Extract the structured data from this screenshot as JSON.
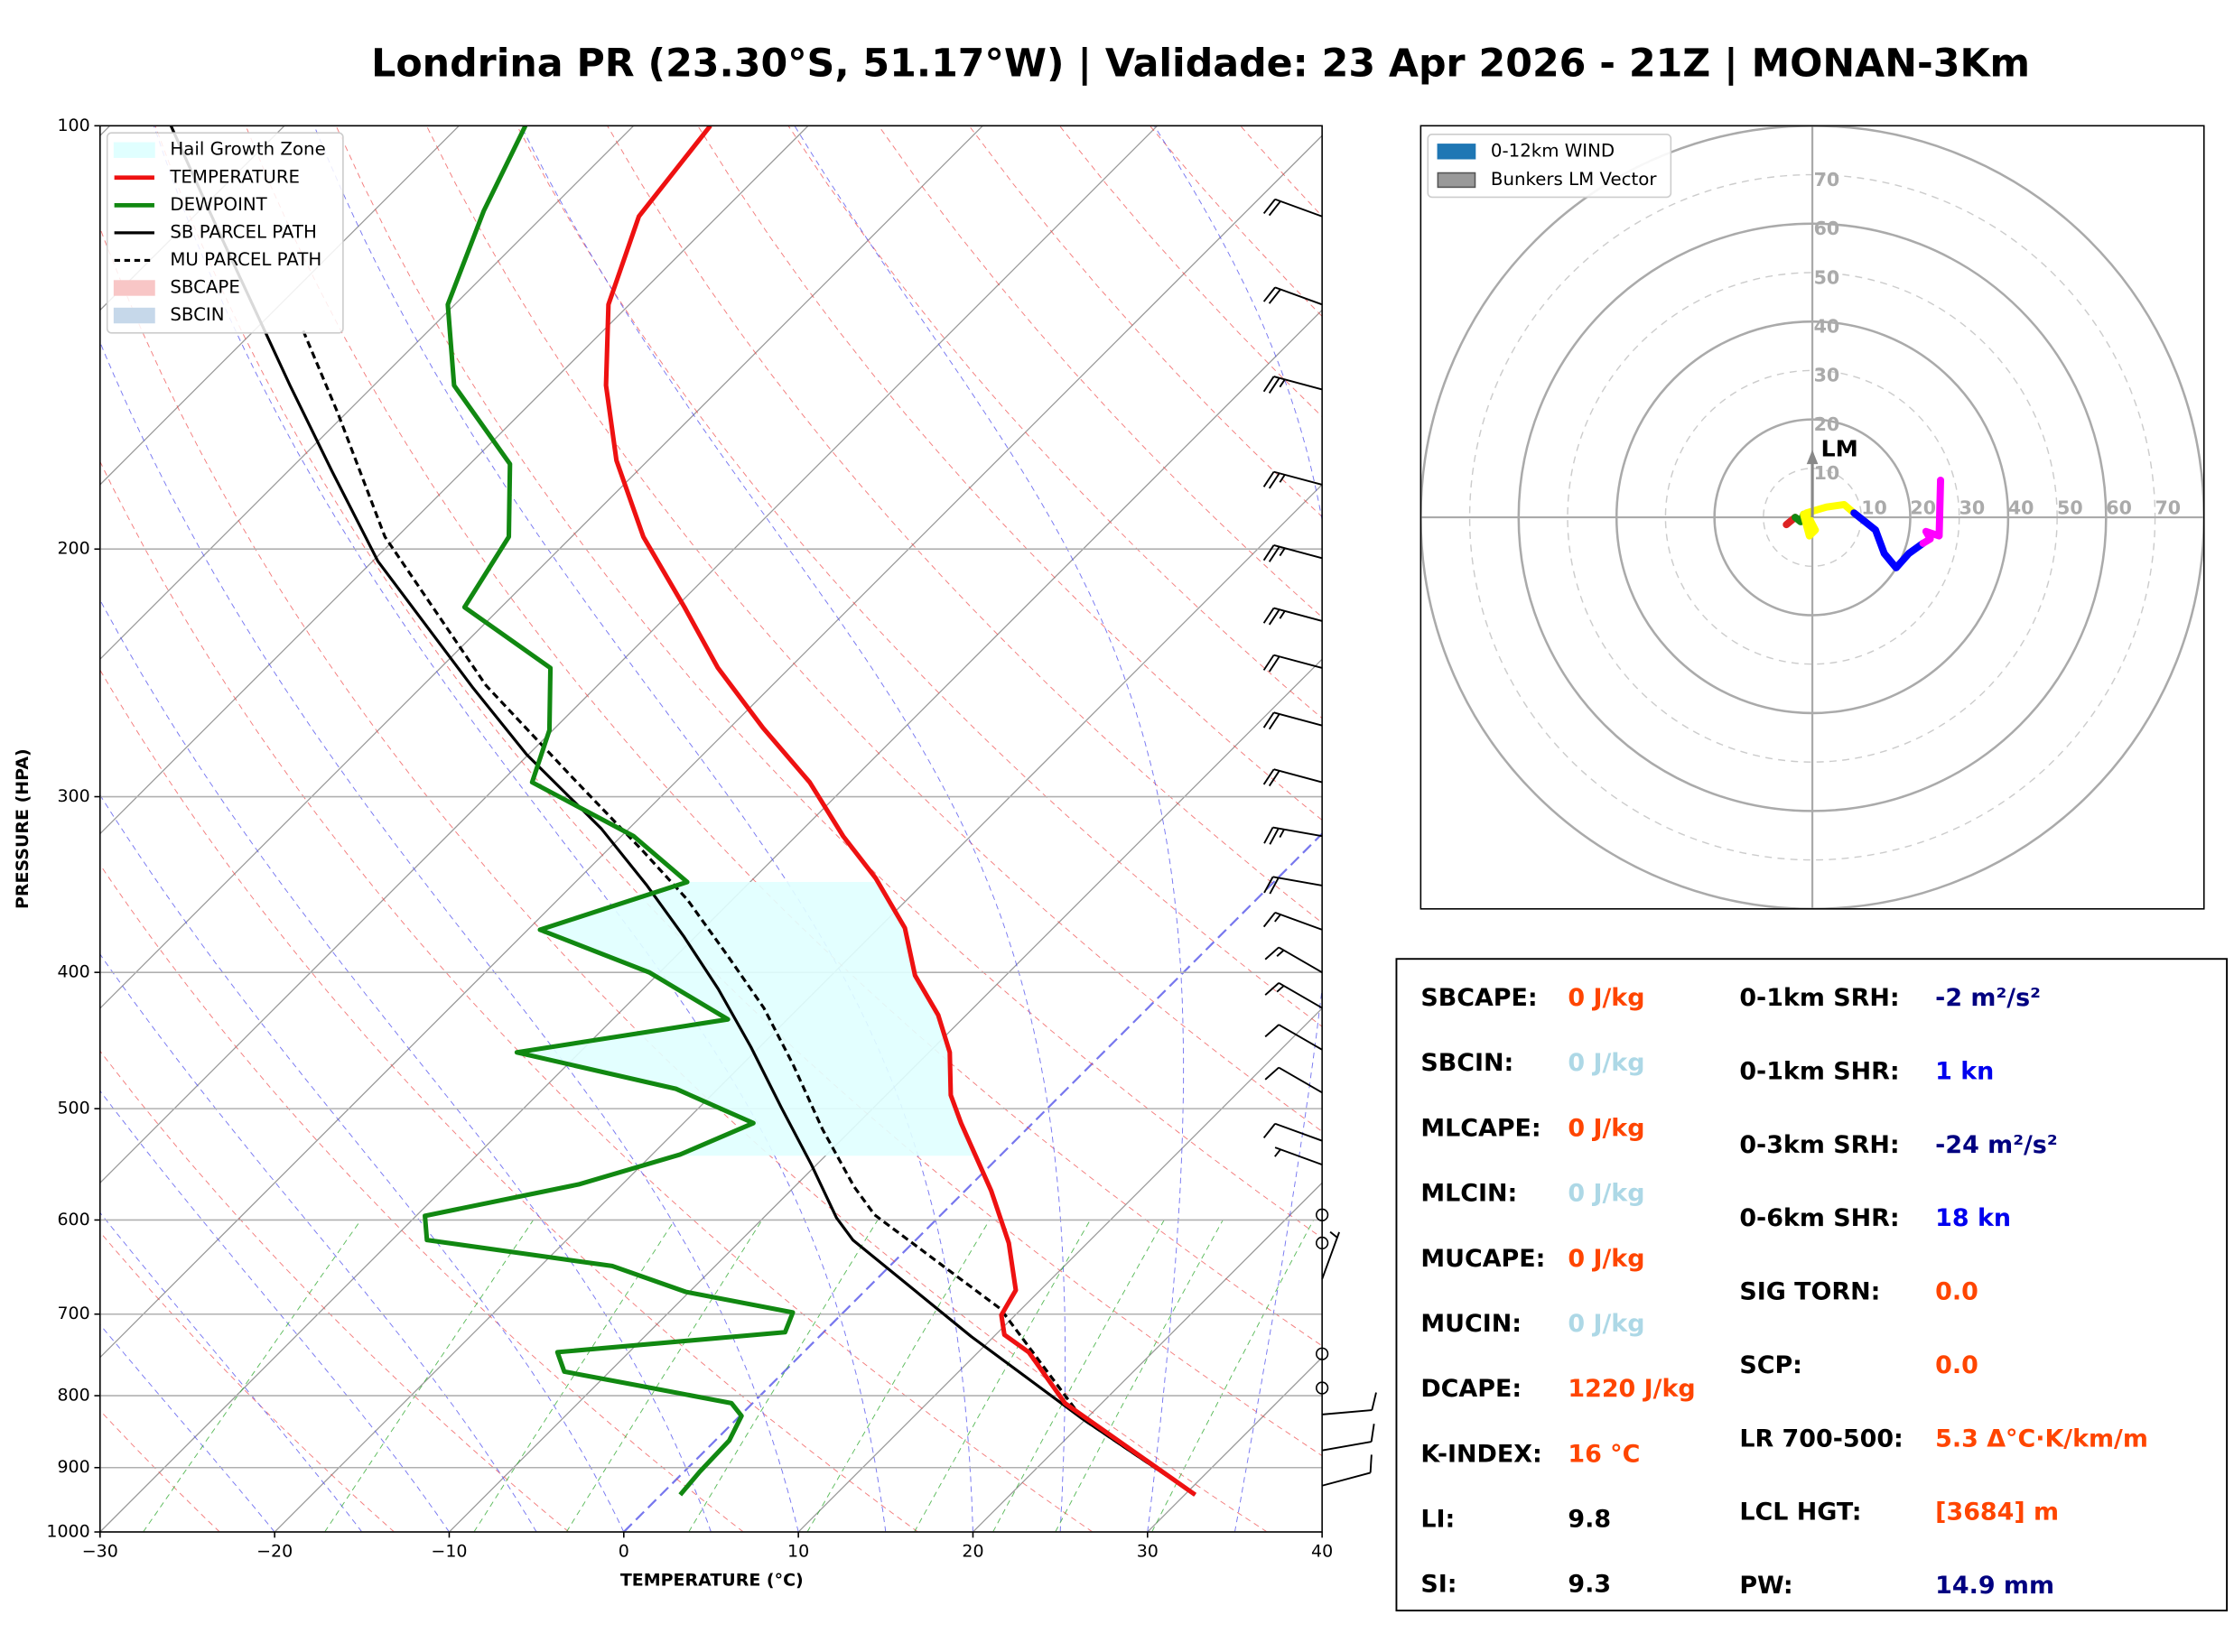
{
  "title": "Londrina PR (23.30°S, 51.17°W) | Validade: 23 Apr 2026 - 21Z | MONAN-3Km",
  "chart_data": [
    {
      "type": "skewt",
      "xlabel": "TEMPERATURE (°C)",
      "ylabel": "PRESSURE (HPA)",
      "xlim": [
        -30,
        40
      ],
      "xticks": [
        {
          "value": -30,
          "label": "−30"
        },
        {
          "value": -20,
          "label": "−20"
        },
        {
          "value": -10,
          "label": "−10"
        },
        0,
        10,
        20,
        30,
        40
      ],
      "ylim": [
        1000,
        100
      ],
      "ylog": true,
      "yticks": [
        100,
        200,
        300,
        400,
        500,
        600,
        700,
        800,
        900,
        1000
      ],
      "grid": true,
      "legend": "upper left",
      "areas": [
        {
          "name": "Hail Growth Zone",
          "color": "#e0ffff",
          "pressure": [
            540,
            345
          ]
        },
        {
          "name": "SBCAPE",
          "color": "#f8c6c6"
        },
        {
          "name": "SBCIN",
          "color": "#c6d8ea"
        }
      ],
      "series": [
        {
          "name": "TEMPERATURE",
          "color": "#ee1111",
          "style": "solid",
          "pressure": [
            941,
            810,
            745,
            724,
            701,
            673,
            623,
            572,
            539,
            512,
            489,
            456,
            429,
            402,
            372,
            343,
            320,
            293,
            268,
            243,
            220,
            196,
            173,
            153,
            134,
            116,
            100
          ],
          "values": [
            30.6,
            17.9,
            12.9,
            10.5,
            9.2,
            8.6,
            5.5,
            1.5,
            -1.5,
            -4.1,
            -6.3,
            -8.8,
            -11.6,
            -15.2,
            -18.5,
            -23.0,
            -27.3,
            -32.3,
            -38.1,
            -44.1,
            -49.5,
            -55.9,
            -61.8,
            -66.7,
            -71.2,
            -74.5,
            -75.6
          ]
        },
        {
          "name": "DEWPOINT",
          "color": "#118811",
          "style": "solid",
          "pressure": [
            941,
            906,
            861,
            827,
            810,
            788,
            769,
            745,
            721,
            698,
            675,
            647,
            620,
            596,
            566,
            539,
            512,
            484,
            456,
            432,
            400,
            373,
            345,
            320,
            293,
            269,
            243,
            220,
            196,
            174,
            153,
            134,
            115,
            100
          ],
          "values": [
            1.1,
            0.9,
            0.8,
            0.1,
            -1.2,
            -7.2,
            -12.6,
            -14.1,
            -2.2,
            -2.9,
            -10.2,
            -15.9,
            -28.0,
            -29.5,
            -22.5,
            -18.4,
            -16.0,
            -22.4,
            -33.6,
            -23.4,
            -30.6,
            -39.3,
            -33.6,
            -39.3,
            -48.2,
            -50.2,
            -53.7,
            -62.1,
            -63.6,
            -67.7,
            -75.4,
            -80.4,
            -83.7,
            -86.2
          ]
        },
        {
          "name": "SB PARCEL PATH",
          "color": "#000000",
          "style": "solid",
          "pressure": [
            941,
            831,
            726,
            620,
            598,
            548,
            499,
            452,
            411,
            377,
            347,
            316,
            280,
            251,
            204,
            176,
            153,
            118,
            100
          ],
          "values": [
            30.6,
            19.8,
            8.7,
            -3.6,
            -5.8,
            -10.3,
            -15.3,
            -20.5,
            -25.7,
            -30.7,
            -35.7,
            -41.6,
            -50.1,
            -57.0,
            -69.7,
            -77.5,
            -84.8,
            -98.1,
            -106.5
          ]
        },
        {
          "name": "MU PARCEL PATH",
          "color": "#000000",
          "style": "dashed",
          "pressure": [
            941,
            831,
            694,
            595,
            568,
            517,
            465,
            424,
            389,
            355,
            328,
            291,
            250,
            196,
            160,
            139
          ],
          "values": [
            30.6,
            19.8,
            8.8,
            -3.8,
            -6.6,
            -11.7,
            -17.1,
            -22.0,
            -27.1,
            -32.6,
            -37.9,
            -46.1,
            -56.4,
            -70.7,
            -80.5,
            -87.5
          ]
        }
      ],
      "wind_barbs": {
        "pressure": [
          116,
          134,
          154,
          180,
          203,
          225,
          243,
          267,
          293,
          320,
          347,
          373,
          400,
          424,
          454,
          487,
          527,
          548,
          595,
          623,
          661,
          747,
          790,
          825,
          875,
          927
        ],
        "speed": [
          20,
          20,
          25,
          25,
          25,
          25,
          20,
          20,
          20,
          25,
          20,
          15,
          15,
          15,
          10,
          10,
          10,
          5,
          0,
          0,
          5,
          0,
          0,
          10,
          10,
          10
        ],
        "direction": [
          290,
          290,
          285,
          285,
          285,
          285,
          285,
          285,
          285,
          280,
          280,
          290,
          300,
          300,
          300,
          300,
          290,
          290,
          0,
          0,
          20,
          0,
          0,
          85,
          80,
          75
        ]
      }
    },
    {
      "type": "hodograph",
      "xlim": [
        -80,
        80
      ],
      "ylim": [
        -80,
        80
      ],
      "rings": [
        10,
        20,
        30,
        40,
        50,
        60,
        70,
        80
      ],
      "ring_labels": [
        10,
        20,
        30,
        40,
        50,
        60,
        70
      ],
      "legend": [
        {
          "name": "0-12km WIND",
          "color": "#1f77b4"
        },
        {
          "name": "Bunkers LM Vector",
          "color": "#999999"
        }
      ],
      "traces": [
        {
          "color": "#dd2222",
          "u": [
            -5.3,
            -3.5
          ],
          "v": [
            -1.5,
            0
          ]
        },
        {
          "color": "#118811",
          "u": [
            -3.5,
            -2.4,
            -1.8
          ],
          "v": [
            0,
            -0.9,
            0.6
          ]
        },
        {
          "color": "#ffff00",
          "u": [
            -1.8,
            -0.6,
            0.6,
            -1.2,
            2.9,
            6.5,
            8.5
          ],
          "v": [
            0.6,
            -3.8,
            -2.6,
            0.9,
            2.1,
            2.6,
            0.9
          ]
        },
        {
          "color": "#0000ff",
          "u": [
            8.5,
            12.9,
            14.7,
            17.1,
            19.7,
            22.6
          ],
          "v": [
            0.9,
            -2.6,
            -7.4,
            -10.3,
            -7.4,
            -5.3
          ]
        },
        {
          "color": "#ff00ff",
          "u": [
            22.6,
            24.1,
            23.2,
            25.9,
            26.2
          ],
          "v": [
            -5.3,
            -4.4,
            -2.9,
            -3.8,
            7.6
          ]
        }
      ],
      "lm": {
        "label": "LM",
        "u": 0,
        "v": 13.2,
        "color": "#888888"
      }
    }
  ],
  "indices": {
    "left": [
      {
        "label": "SBCAPE:",
        "value": "0 J/kg",
        "color": "#ff4500"
      },
      {
        "label": "SBCIN:",
        "value": "0 J/kg",
        "color": "#add8e6"
      },
      {
        "label": "MLCAPE:",
        "value": "0 J/kg",
        "color": "#ff4500"
      },
      {
        "label": "MLCIN:",
        "value": "0 J/kg",
        "color": "#add8e6"
      },
      {
        "label": "MUCAPE:",
        "value": "0 J/kg",
        "color": "#ff4500"
      },
      {
        "label": "MUCIN:",
        "value": "0 J/kg",
        "color": "#add8e6"
      },
      {
        "label": "DCAPE:",
        "value": "1220 J/kg",
        "color": "#ff4500"
      },
      {
        "label": "K-INDEX:",
        "value": "16 °C",
        "color": "#ff4500"
      },
      {
        "label": "LI:",
        "value": "9.8",
        "color": "#000000"
      },
      {
        "label": "SI:",
        "value": "9.3",
        "color": "#000000"
      }
    ],
    "right": [
      {
        "label": "0-1km SRH:",
        "value": "-2 m²/s²",
        "color": "#000080"
      },
      {
        "label": "0-1km SHR:",
        "value": "1 kn",
        "color": "#0000ee"
      },
      {
        "label": "0-3km SRH:",
        "value": "-24 m²/s²",
        "color": "#000080"
      },
      {
        "label": "0-6km SHR:",
        "value": "18 kn",
        "color": "#0000ee"
      },
      {
        "label": "SIG TORN:",
        "value": "0.0",
        "color": "#ff4500"
      },
      {
        "label": "SCP:",
        "value": "0.0",
        "color": "#ff4500"
      },
      {
        "label": "LR 700-500:",
        "value": "5.3 Δ°C·K/km/m",
        "color": "#ff4500"
      },
      {
        "label": "LCL HGT:",
        "value": "[3684] m",
        "color": "#ff4500"
      },
      {
        "label": "PW:",
        "value": "14.9 mm",
        "color": "#000080"
      }
    ]
  }
}
